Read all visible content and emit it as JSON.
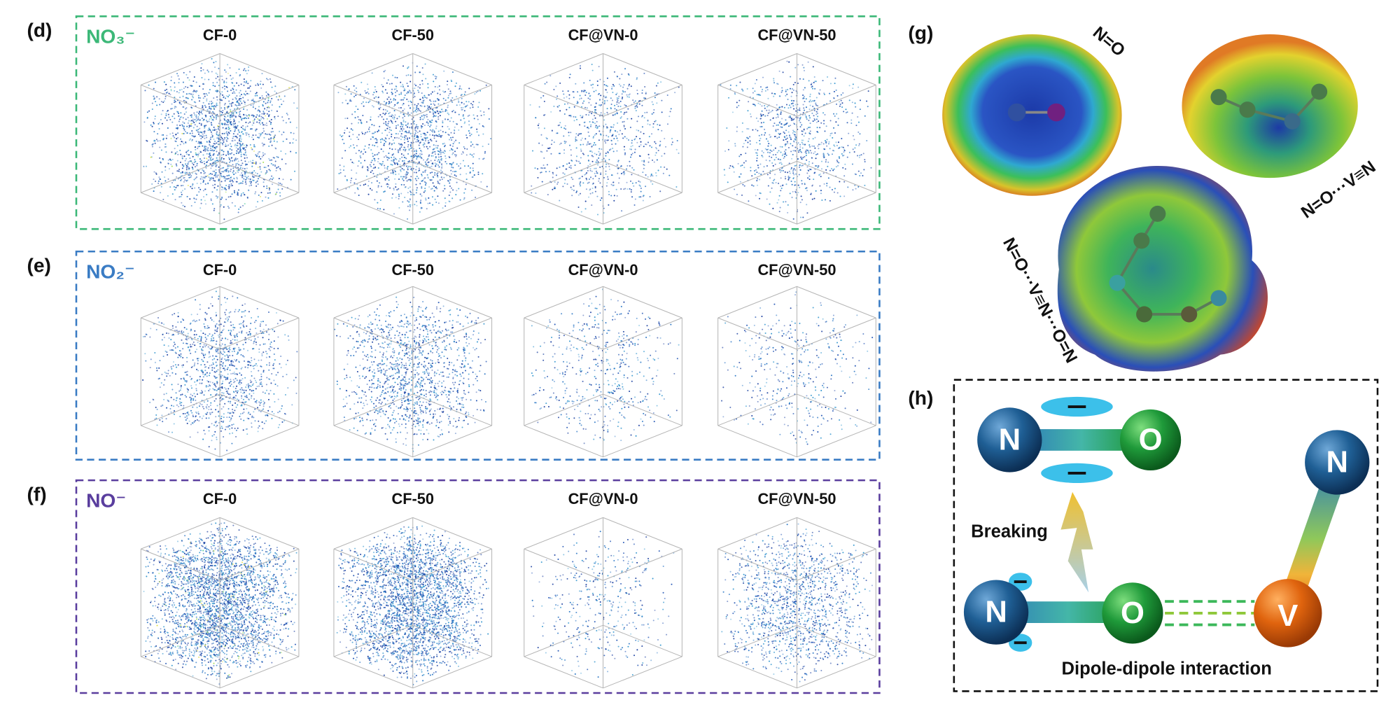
{
  "figure": {
    "panels": [
      {
        "label": "(d)",
        "ion": "NO₃⁻",
        "color": "#3cb878",
        "columns": [
          "CF-0",
          "CF-50",
          "CF@VN-0",
          "CF@VN-50"
        ]
      },
      {
        "label": "(e)",
        "ion": "NO₂⁻",
        "color": "#3a7cc4",
        "columns": [
          "CF-0",
          "CF-50",
          "CF@VN-0",
          "CF@VN-50"
        ]
      },
      {
        "label": "(f)",
        "ion": "NO⁻",
        "color": "#5a3e9e",
        "columns": [
          "CF-0",
          "CF-50",
          "CF@VN-0",
          "CF@VN-50"
        ]
      }
    ],
    "g": {
      "label": "(g)",
      "molecules": [
        "N=O",
        "N=O···V≡N",
        "N=O···V≡N···O=N"
      ]
    },
    "h": {
      "label": "(h)",
      "atoms": [
        "N",
        "O",
        "N",
        "O",
        "N",
        "V"
      ],
      "breaking": "Breaking",
      "interaction": "Dipole-dipole interaction"
    }
  }
}
